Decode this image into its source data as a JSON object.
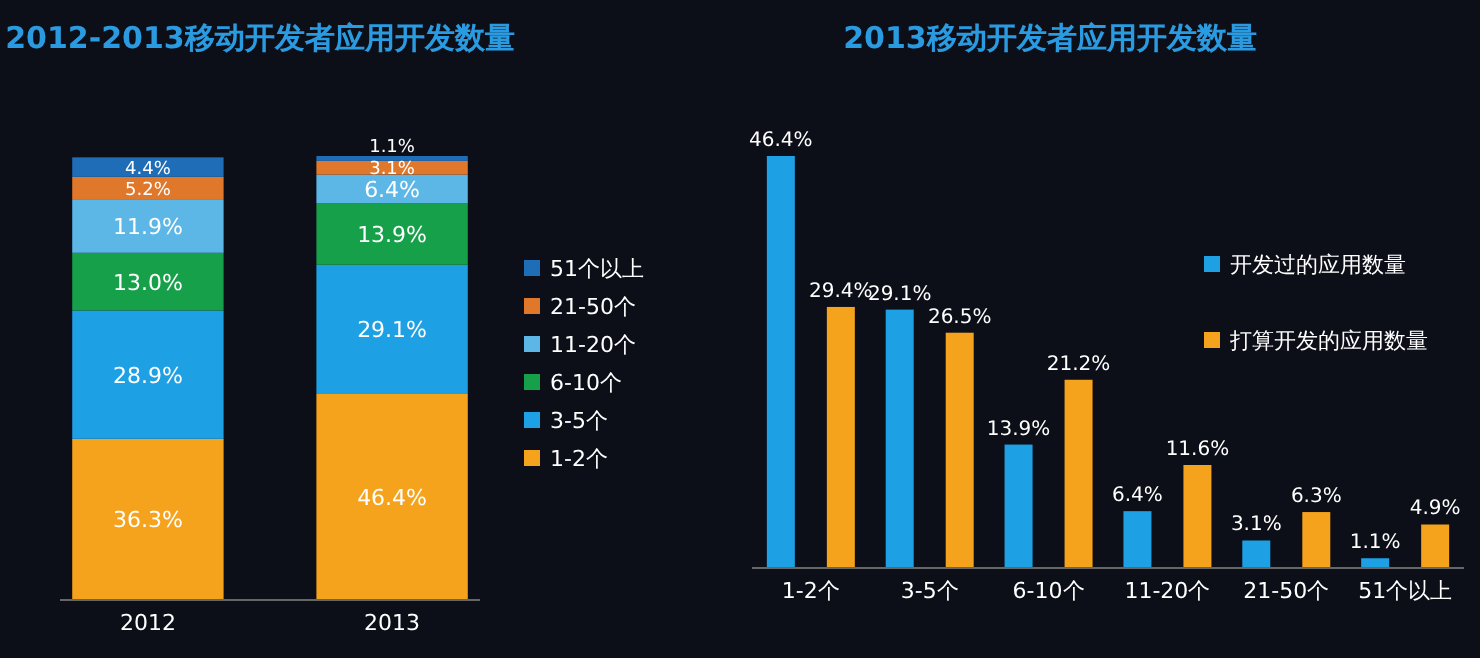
{
  "chart_data": [
    {
      "type": "bar",
      "title": "2012-2013移动开发者应用开发数量",
      "categories": [
        "2012",
        "2013"
      ],
      "stacked": true,
      "tick_labels": "x",
      "legend": "right",
      "series": [
        {
          "name": "1-2个",
          "color": "#f5a21c",
          "values": [
            36.3,
            46.4
          ],
          "value_labels": [
            "36.3%",
            "46.4%"
          ]
        },
        {
          "name": "3-5个",
          "color": "#1ea0e4",
          "values": [
            28.9,
            29.1
          ],
          "value_labels": [
            "28.9%",
            "29.1%"
          ]
        },
        {
          "name": "6-10个",
          "color": "#17a04a",
          "values": [
            13.0,
            13.9
          ],
          "value_labels": [
            "13.0%",
            "13.9%"
          ]
        },
        {
          "name": "11-20个",
          "color": "#5cb6e6",
          "values": [
            11.9,
            6.4
          ],
          "value_labels": [
            "11.9%",
            "6.4%"
          ]
        },
        {
          "name": "21-50个",
          "color": "#e0782c",
          "values": [
            5.2,
            3.1
          ],
          "value_labels": [
            "5.2%",
            "3.1%"
          ]
        },
        {
          "name": "51个以上",
          "color": "#1f6db6",
          "values": [
            4.4,
            1.1
          ],
          "value_labels": [
            "4.4%",
            "1.1%"
          ]
        }
      ]
    },
    {
      "type": "bar",
      "title": "2013移动开发者应用开发数量",
      "categories": [
        "1-2个",
        "3-5个",
        "6-10个",
        "11-20个",
        "21-50个",
        "51个以上"
      ],
      "tick_labels": "x",
      "legend": "right",
      "series": [
        {
          "name": "开发过的应用数量",
          "color": "#1ea0e4",
          "values": [
            46.4,
            29.1,
            13.9,
            6.4,
            3.1,
            1.1
          ],
          "value_labels": [
            "46.4%",
            "29.1%",
            "13.9%",
            "6.4%",
            "3.1%",
            "1.1%"
          ]
        },
        {
          "name": "打算开发的应用数量",
          "color": "#f5a21c",
          "values": [
            29.4,
            26.5,
            21.2,
            11.6,
            6.3,
            4.9
          ],
          "value_labels": [
            "29.4%",
            "26.5%",
            "21.2%",
            "11.6%",
            "6.3%",
            "4.9%"
          ]
        }
      ]
    }
  ]
}
